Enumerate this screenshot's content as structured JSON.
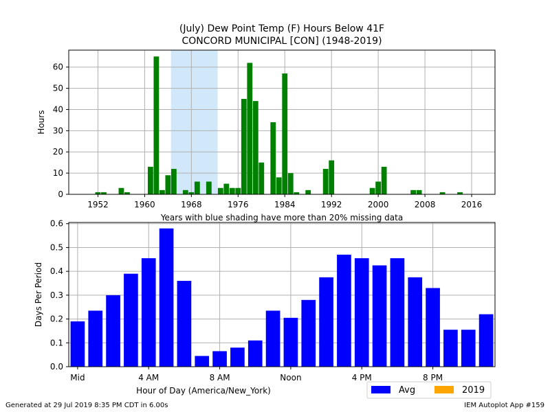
{
  "chart_data": [
    {
      "type": "bar",
      "title_lines": [
        "(July) Dew Point Temp (F) Hours Below 41F",
        "CONCORD MUNICIPAL [CON] (1948-2019)"
      ],
      "xlabel": "Years with blue shading have more than 20% missing data",
      "ylabel": "Hours",
      "xlim": [
        1947,
        2020
      ],
      "ylim": [
        0,
        68
      ],
      "xticks": [
        1952,
        1960,
        1968,
        1976,
        1984,
        1992,
        2000,
        2008,
        2016
      ],
      "yticks": [
        0,
        10,
        20,
        30,
        40,
        50,
        60
      ],
      "grid": true,
      "bar_color": "#008000",
      "shade_color": "#d0e8fa",
      "missing_data_shading": [
        1964.5,
        1972.5
      ],
      "x": [
        1952,
        1953,
        1956,
        1957,
        1961,
        1962,
        1963,
        1964,
        1965,
        1967,
        1968,
        1969,
        1971,
        1973,
        1974,
        1975,
        1976,
        1977,
        1978,
        1979,
        1980,
        1982,
        1983,
        1984,
        1985,
        1986,
        1988,
        1991,
        1992,
        1999,
        2000,
        2001,
        2006,
        2007,
        2011,
        2014
      ],
      "values": [
        1,
        1,
        3,
        1,
        13,
        65,
        2,
        9,
        12,
        2,
        1,
        6,
        6,
        3,
        5,
        3,
        3,
        45,
        62,
        44,
        15,
        34,
        8,
        57,
        10,
        1,
        2,
        12,
        16,
        3,
        6,
        13,
        2,
        2,
        1,
        1
      ]
    },
    {
      "type": "bar",
      "xlabel": "Hour of Day (America/New_York)",
      "ylabel": "Days Per Period",
      "xlim": [
        -0.5,
        23.5
      ],
      "ylim": [
        0,
        0.605
      ],
      "yticks": [
        0.0,
        0.1,
        0.2,
        0.3,
        0.4,
        0.5,
        0.6
      ],
      "ytick_labels": [
        "0.0",
        "0.1",
        "0.2",
        "0.3",
        "0.4",
        "0.5",
        "0.6"
      ],
      "xticks": [
        0,
        4,
        8,
        12,
        16,
        20
      ],
      "xtick_labels": [
        "Mid",
        "4 AM",
        "8 AM",
        "Noon",
        "4 PM",
        "8 PM"
      ],
      "grid": true,
      "legend_placement": "below-right",
      "series": [
        {
          "name": "Avg",
          "color": "#0000ff",
          "values": [
            0.19,
            0.235,
            0.3,
            0.39,
            0.455,
            0.58,
            0.36,
            0.045,
            0.065,
            0.08,
            0.11,
            0.235,
            0.205,
            0.28,
            0.375,
            0.47,
            0.455,
            0.425,
            0.455,
            0.375,
            0.33,
            0.155,
            0.155,
            0.22
          ]
        },
        {
          "name": "2019",
          "color": "#ffa500",
          "values": [
            0,
            0,
            0,
            0,
            0,
            0,
            0,
            0,
            0,
            0,
            0,
            0,
            0,
            0,
            0,
            0,
            0,
            0,
            0,
            0,
            0,
            0,
            0,
            0
          ]
        }
      ]
    }
  ],
  "footer": {
    "left": "Generated at 29 Jul 2019 8:35 PM CDT in 6.00s",
    "right": "IEM Autoplot App #159"
  }
}
